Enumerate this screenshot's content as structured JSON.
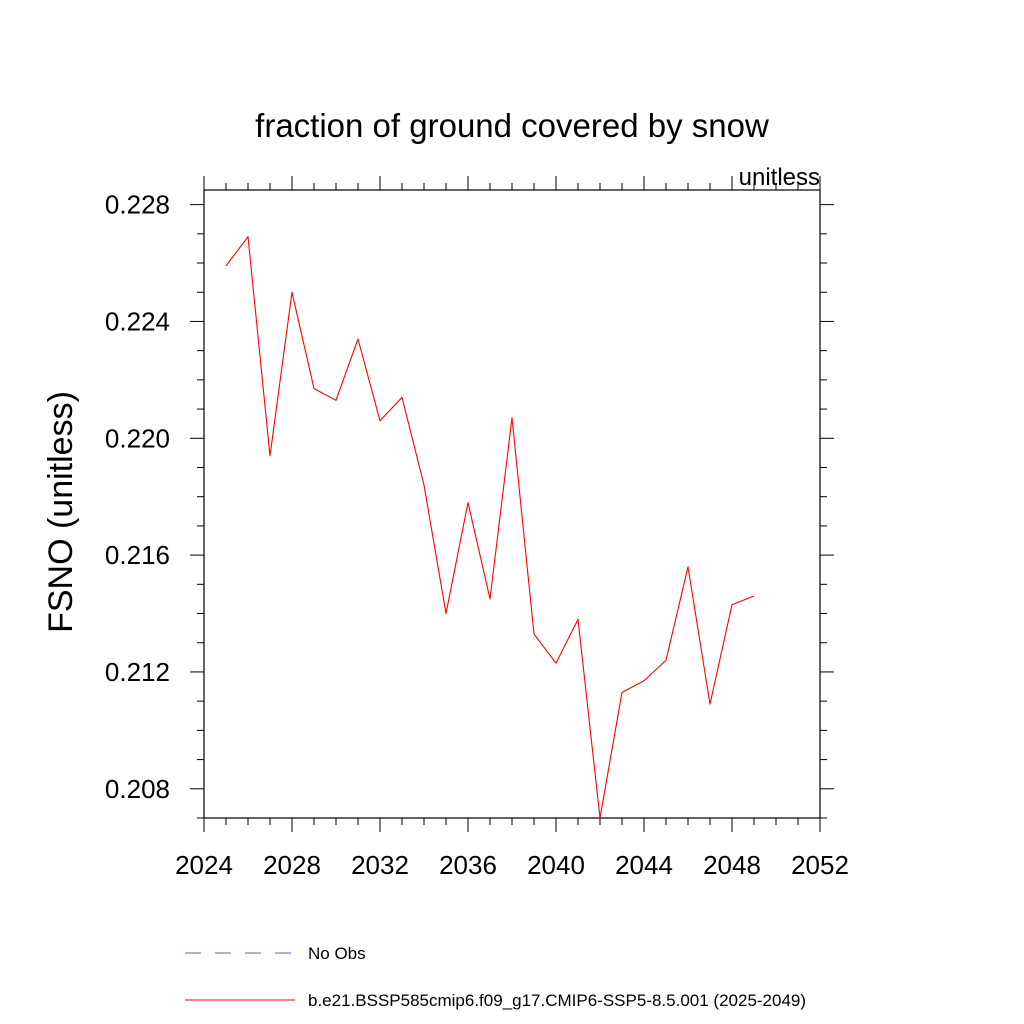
{
  "chart_data": {
    "type": "line",
    "title": "fraction of ground covered by snow",
    "units_label": "unitless",
    "ylabel": "FSNO  (unitless)",
    "xlabel": "",
    "xlim": [
      2024,
      2052
    ],
    "ylim": [
      0.207,
      0.2285
    ],
    "x_ticks": [
      "2024",
      "2028",
      "2032",
      "2036",
      "2040",
      "2044",
      "2048",
      "2052"
    ],
    "y_ticks": [
      "0.208",
      "0.212",
      "0.216",
      "0.220",
      "0.224",
      "0.228"
    ],
    "grid": false,
    "legend_position": "bottom",
    "legend": [
      {
        "label": "No Obs",
        "color": "#6a5acd",
        "style": "dashed"
      },
      {
        "label": "b.e21.BSSP585cmip6.f09_g17.CMIP6-SSP5-8.5.001 (2025-2049)",
        "color": "#ff0000",
        "style": "solid"
      }
    ],
    "series": [
      {
        "color": "#ff0000",
        "x": [
          2025,
          2026,
          2027,
          2028,
          2029,
          2030,
          2031,
          2032,
          2033,
          2034,
          2035,
          2036,
          2037,
          2038,
          2039,
          2040,
          2041,
          2042,
          2043,
          2044,
          2045,
          2046,
          2047,
          2048,
          2049
        ],
        "values": [
          0.2259,
          0.2269,
          0.2194,
          0.225,
          0.2217,
          0.2213,
          0.2234,
          0.2206,
          0.2214,
          0.2184,
          0.214,
          0.2178,
          0.2145,
          0.2207,
          0.2133,
          0.2123,
          0.2138,
          0.207,
          0.2113,
          0.2117,
          0.2124,
          0.2156,
          0.2109,
          0.2143,
          0.2146
        ]
      }
    ]
  }
}
